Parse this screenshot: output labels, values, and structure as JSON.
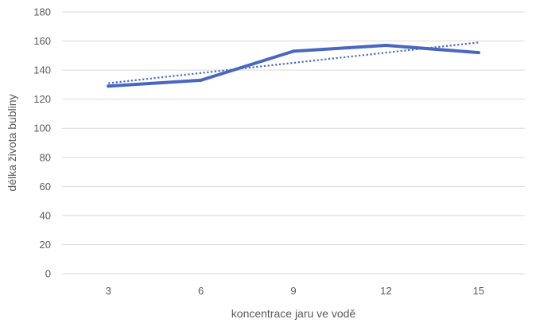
{
  "chart_data": {
    "type": "line",
    "title": "",
    "xlabel": "koncentrace jaru ve vodě",
    "ylabel": "délka života bubliny",
    "categories": [
      "3",
      "6",
      "9",
      "12",
      "15"
    ],
    "x": [
      3,
      6,
      9,
      12,
      15
    ],
    "series": [
      {
        "values": [
          129,
          133,
          153,
          157,
          152
        ],
        "color": "#4a67c0"
      }
    ],
    "trendline": {
      "type": "linear",
      "from": [
        3,
        131
      ],
      "to": [
        15,
        159
      ],
      "style": "dotted",
      "color": "#4a67c0"
    },
    "ylim": [
      0,
      180
    ],
    "yticks": [
      0,
      20,
      40,
      60,
      80,
      100,
      120,
      140,
      160,
      180
    ],
    "grid": true,
    "legend": "none"
  }
}
